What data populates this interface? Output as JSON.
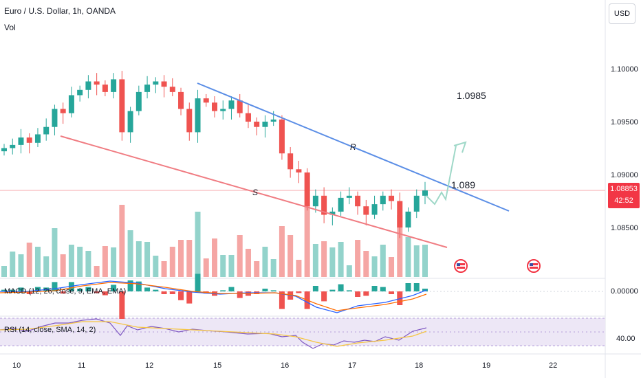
{
  "header": {
    "title": "Euro / U.S. Dollar, 1h, OANDA",
    "volume_label": "Vol",
    "currency_button": "USD"
  },
  "price_axis": {
    "ticks": [
      "1.10000",
      "1.09500",
      "1.09000",
      "1.08500"
    ],
    "current_price": "1.08853",
    "countdown": "42:52",
    "macd_tick": "0.00000",
    "rsi_tick": "40.00"
  },
  "time_axis": {
    "labels": [
      "10",
      "11",
      "12",
      "15",
      "16",
      "17",
      "18",
      "19",
      "22"
    ]
  },
  "annotations": {
    "target_price": "1.0985",
    "breakout_price": "1.089",
    "resistance_label": "R",
    "support_label": "S"
  },
  "indicators": {
    "macd_label": "MACD (12, 26, close, 9, EMA, EMA)",
    "rsi_label": "RSI (14, close, SMA, 14, 2)"
  },
  "colors": {
    "up": "#26a69a",
    "down": "#ef5350",
    "resistance": "#5b8ee6",
    "support": "#f07c82",
    "projection": "#9fd8c8",
    "rsi_line": "#7e57c2",
    "rsi_ma": "#f5c542",
    "rsi_band": "#ede7f6"
  },
  "chart_data": {
    "type": "candlestick",
    "close_series": [
      1.0925,
      1.0928,
      1.0935,
      1.093,
      1.0938,
      1.0945,
      1.0962,
      1.0958,
      1.0975,
      1.098,
      1.0988,
      1.0985,
      1.0978,
      1.099,
      1.094,
      1.096,
      1.0978,
      1.0985,
      1.0988,
      1.0983,
      1.0978,
      1.0962,
      1.094,
      1.0972,
      1.0968,
      1.096,
      1.0962,
      1.097,
      1.0958,
      1.095,
      1.0945,
      1.095,
      1.0952,
      1.092,
      1.0905,
      1.0902,
      1.087,
      1.088,
      1.0862,
      1.0865,
      1.0878,
      1.088,
      1.087,
      1.0862,
      1.0872,
      1.088,
      1.0875,
      1.085,
      1.0865,
      1.088,
      1.0885
    ],
    "current_price": 1.08853,
    "resistance_line": [
      [
        1.0985,
        "15"
      ],
      [
        1.0868,
        "19"
      ]
    ],
    "support_line": [
      [
        1.0938,
        "10"
      ],
      [
        1.0835,
        "18"
      ]
    ],
    "target": 1.0985,
    "breakout": 1.089
  }
}
